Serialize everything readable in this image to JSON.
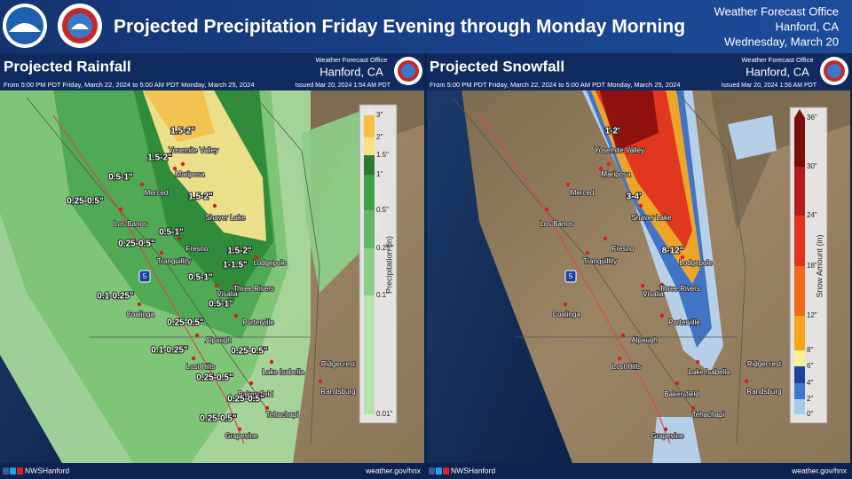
{
  "header": {
    "title": "Projected Precipitation Friday Evening through Monday Morning",
    "office": "Weather Forecast Office",
    "location": "Hanford, CA",
    "date": "Wednesday, March 20"
  },
  "places": [
    "Yosemite Valley",
    "Mariposa",
    "Merced",
    "Los Banos",
    "Fresno",
    "Tranquillity",
    "Shaver Lake",
    "Lodgepole",
    "Three Rivers",
    "Visalia",
    "Coalinga",
    "Porterville",
    "Alpaugh",
    "Lost Hills",
    "Lake Isabella",
    "Ridgecrest",
    "Randsburg",
    "Bakersfield",
    "Tehachapi",
    "Grapevine"
  ],
  "route": "5",
  "panels": [
    {
      "title": "Projected Rainfall",
      "office": "Weather Forecast Office",
      "location": "Hanford, CA",
      "period": "From 5:00 PM PDT Friday, March 22, 2024 to 5:00 AM PDT Monday, March 25, 2024",
      "issued": "Issued Mar 20, 2024 1:54 AM PDT",
      "legend": {
        "title": "Precipitation (in)",
        "ticks": [
          "3\"",
          "2\"",
          "1.5\"",
          "1\"",
          "0.5\"",
          "0.25\"",
          "0.1\"",
          "0.01\""
        ]
      },
      "amounts": [
        "1.5-2\"",
        "1.5-2\"",
        "1.5-2\"",
        "0.5-1\"",
        "0.25-0.5\"",
        "0.5-1\"",
        "0.25-0.5\"",
        "1.5-2\"",
        "1-1.5\"",
        "0.5-1\"",
        "0.1-0.25\"",
        "0.5-1\"",
        "0.25-0.5\"",
        "0.1-0.25\"",
        "0.25-0.5\"",
        "0.25-0.5\"",
        "0.25-0.5\"",
        "0.25-0.5\""
      ]
    },
    {
      "title": "Projected Snowfall",
      "office": "Weather Forecast Office",
      "location": "Hanford, CA",
      "period": "From 5:00 PM PDT Friday, March 22, 2024 to 5:00 AM PDT Monday, March 25, 2024",
      "issued": "Issued Mar 20, 2024 1:56 AM PDT",
      "legend": {
        "title": "Snow Amount (in)",
        "ticks": [
          "36\"",
          "30\"",
          "24\"",
          "18\"",
          "12\"",
          "8\"",
          "6\"",
          "4\"",
          "2\"",
          "0\""
        ]
      },
      "amounts": [
        "1-2'",
        "3-4'",
        "8-12\""
      ]
    }
  ],
  "footer": {
    "social": "NWSHanford",
    "url": "weather.gov/hnx"
  }
}
